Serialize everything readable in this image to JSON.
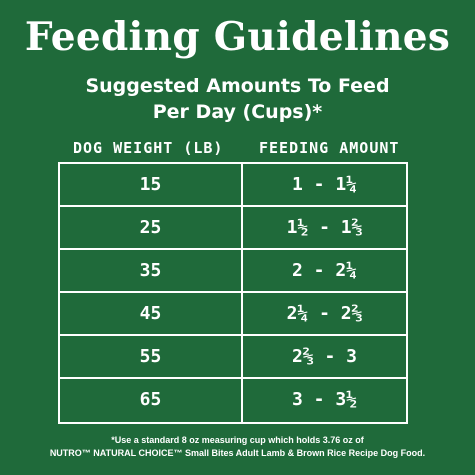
{
  "title": "Feeding Guidelines",
  "subtitle": {
    "line1": "Suggested Amounts To Feed",
    "line2": "Per Day (Cups)*"
  },
  "table": {
    "headers": [
      "DOG WEIGHT (LB)",
      "FEEDING AMOUNT"
    ],
    "rows": [
      {
        "weight": "15",
        "amount": "1 - 1¼"
      },
      {
        "weight": "25",
        "amount": "1½ - 1⅔"
      },
      {
        "weight": "35",
        "amount": "2 - 2¼"
      },
      {
        "weight": "45",
        "amount": "2¼ - 2⅔"
      },
      {
        "weight": "55",
        "amount": "2⅔ - 3"
      },
      {
        "weight": "65",
        "amount": "3 - 3½"
      }
    ]
  },
  "footnote": {
    "line1": "*Use a standard 8 oz measuring cup which holds 3.76 oz of",
    "line2": "NUTRO™ NATURAL CHOICE™ Small Bites Adult Lamb & Brown Rice Recipe Dog Food."
  },
  "colors": {
    "background": "#1f6a3a",
    "text": "#ffffff"
  }
}
